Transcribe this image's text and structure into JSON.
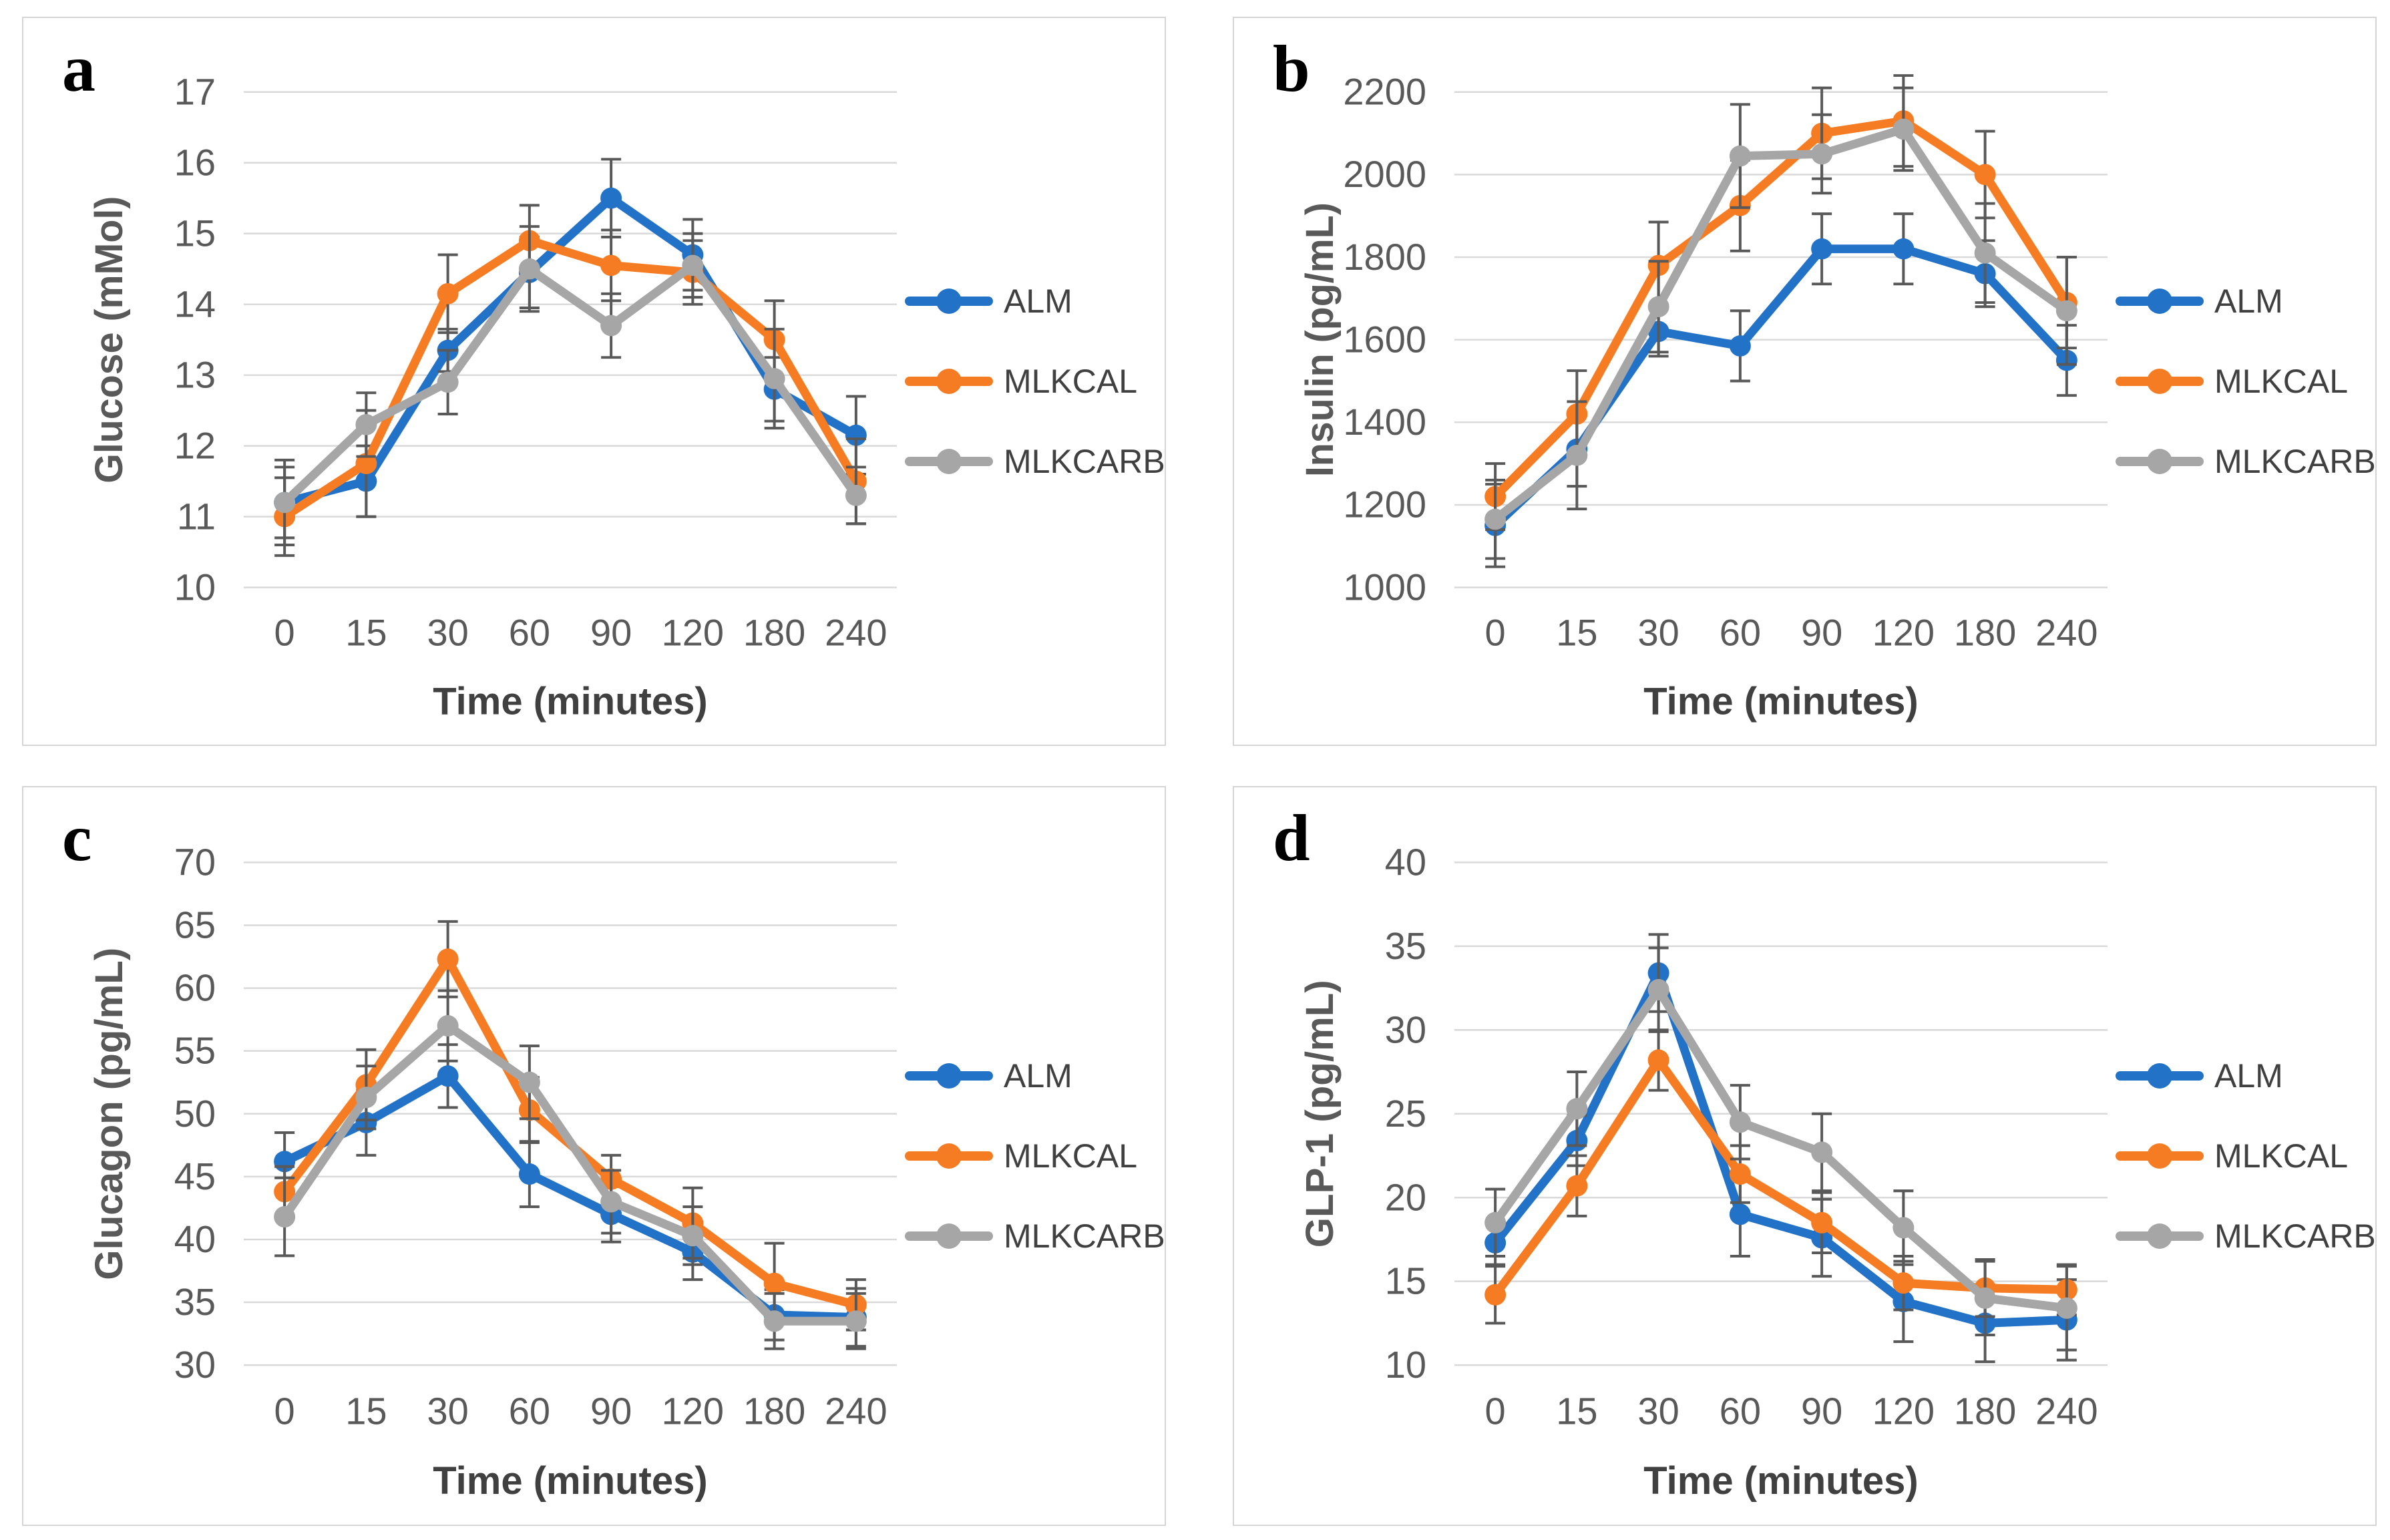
{
  "figure": {
    "colors": {
      "alm": "#2272C8",
      "mlkcal": "#F57C22",
      "mlkcarb": "#A6A6A6",
      "error_bar": "#595959",
      "gridline": "#D9D9D9",
      "tick_text": "#595959",
      "title_text": "#404040",
      "panel_letter": "#000000"
    },
    "legend_entries": [
      "ALM",
      "MLKCAL",
      "MLKCARB"
    ]
  },
  "chart_data": [
    {
      "letter": "a",
      "type": "line",
      "ylabel": "Glucose (mMol)",
      "xlabel": "Time (minutes)",
      "x_categories": [
        "0",
        "15",
        "30",
        "60",
        "90",
        "120",
        "180",
        "240"
      ],
      "ylim": [
        10,
        17
      ],
      "yticks": [
        10,
        11,
        12,
        13,
        14,
        15,
        16,
        17
      ],
      "grid": true,
      "legend_position": "right",
      "series": [
        {
          "name": "ALM",
          "color": "#2272C8",
          "values": [
            11.2,
            11.5,
            13.35,
            14.45,
            15.5,
            14.7,
            12.8,
            12.15
          ],
          "errors": [
            0.6,
            0.5,
            0.3,
            0.5,
            0.55,
            0.5,
            0.45,
            0.55
          ]
        },
        {
          "name": "MLKCAL",
          "color": "#F57C22",
          "values": [
            11.0,
            11.75,
            14.15,
            14.9,
            14.55,
            14.45,
            13.5,
            11.5
          ],
          "errors": [
            0.55,
            0.75,
            0.55,
            0.5,
            0.5,
            0.45,
            0.55,
            0.6
          ]
        },
        {
          "name": "MLKCARB",
          "color": "#A6A6A6",
          "values": [
            11.2,
            12.3,
            12.9,
            14.5,
            13.7,
            14.55,
            12.95,
            11.3
          ],
          "errors": [
            0.5,
            0.45,
            0.45,
            0.6,
            0.45,
            0.45,
            0.7,
            0.4
          ]
        }
      ]
    },
    {
      "letter": "b",
      "type": "line",
      "ylabel": "Insulin (pg/mL)",
      "xlabel": "Time (minutes)",
      "x_categories": [
        "0",
        "15",
        "30",
        "60",
        "90",
        "120",
        "180",
        "240"
      ],
      "ylim": [
        1000,
        2200
      ],
      "yticks": [
        1000,
        1200,
        1400,
        1600,
        1800,
        2000,
        2200
      ],
      "grid": true,
      "legend_position": "right",
      "series": [
        {
          "name": "ALM",
          "color": "#2272C8",
          "values": [
            1150,
            1335,
            1620,
            1585,
            1820,
            1820,
            1760,
            1550
          ],
          "errors": [
            100,
            90,
            60,
            85,
            85,
            85,
            80,
            85
          ]
        },
        {
          "name": "MLKCAL",
          "color": "#F57C22",
          "values": [
            1220,
            1420,
            1780,
            1925,
            2100,
            2130,
            2000,
            1690
          ],
          "errors": [
            80,
            105,
            105,
            110,
            110,
            110,
            105,
            110
          ]
        },
        {
          "name": "MLKCARB",
          "color": "#A6A6A6",
          "values": [
            1165,
            1320,
            1680,
            2045,
            2050,
            2110,
            1810,
            1670
          ],
          "errors": [
            95,
            130,
            110,
            125,
            95,
            100,
            120,
            130
          ]
        }
      ]
    },
    {
      "letter": "c",
      "type": "line",
      "ylabel": "Glucagon (pg/mL)",
      "xlabel": "Time (minutes)",
      "x_categories": [
        "0",
        "15",
        "30",
        "60",
        "90",
        "120",
        "180",
        "240"
      ],
      "ylim": [
        30,
        70
      ],
      "yticks": [
        30,
        35,
        40,
        45,
        50,
        55,
        60,
        65,
        70
      ],
      "grid": true,
      "legend_position": "right",
      "series": [
        {
          "name": "ALM",
          "color": "#2272C8",
          "values": [
            46.2,
            49.3,
            53.0,
            45.2,
            42.0,
            39.0,
            34.0,
            33.8
          ],
          "errors": [
            2.3,
            2.6,
            2.5,
            2.6,
            2.2,
            2.2,
            2.0,
            2.3
          ]
        },
        {
          "name": "MLKCAL",
          "color": "#F57C22",
          "values": [
            43.8,
            52.3,
            62.3,
            50.3,
            44.8,
            41.3,
            36.5,
            34.8
          ],
          "errors": [
            2.0,
            2.8,
            3.0,
            2.6,
            1.9,
            2.8,
            3.2,
            2.0
          ]
        },
        {
          "name": "MLKCARB",
          "color": "#A6A6A6",
          "values": [
            41.8,
            51.3,
            57.0,
            52.5,
            43.0,
            40.3,
            33.5,
            33.5
          ],
          "errors": [
            3.1,
            2.5,
            2.8,
            2.9,
            2.5,
            2.3,
            2.2,
            2.2
          ]
        }
      ]
    },
    {
      "letter": "d",
      "type": "line",
      "ylabel": "GLP-1 (pg/mL)",
      "xlabel": "Time (minutes)",
      "x_categories": [
        "0",
        "15",
        "30",
        "60",
        "90",
        "120",
        "180",
        "240"
      ],
      "ylim": [
        10,
        40
      ],
      "yticks": [
        10,
        15,
        20,
        25,
        30,
        35,
        40
      ],
      "grid": true,
      "legend_position": "right",
      "series": [
        {
          "name": "ALM",
          "color": "#2272C8",
          "values": [
            17.3,
            23.4,
            33.4,
            19.0,
            17.6,
            13.8,
            12.5,
            12.7
          ],
          "errors": [
            1.3,
            1.5,
            2.3,
            2.5,
            2.3,
            2.4,
            2.3,
            2.4
          ]
        },
        {
          "name": "MLKCAL",
          "color": "#F57C22",
          "values": [
            14.2,
            20.7,
            28.2,
            21.4,
            18.5,
            14.9,
            14.6,
            14.5
          ],
          "errors": [
            1.7,
            1.8,
            1.8,
            1.7,
            1.8,
            1.6,
            1.7,
            1.5
          ]
        },
        {
          "name": "MLKCARB",
          "color": "#A6A6A6",
          "values": [
            18.5,
            25.3,
            32.4,
            24.5,
            22.7,
            18.2,
            14.0,
            13.4
          ],
          "errors": [
            2.0,
            2.2,
            2.5,
            2.2,
            2.3,
            2.2,
            2.2,
            2.5
          ]
        }
      ]
    }
  ]
}
